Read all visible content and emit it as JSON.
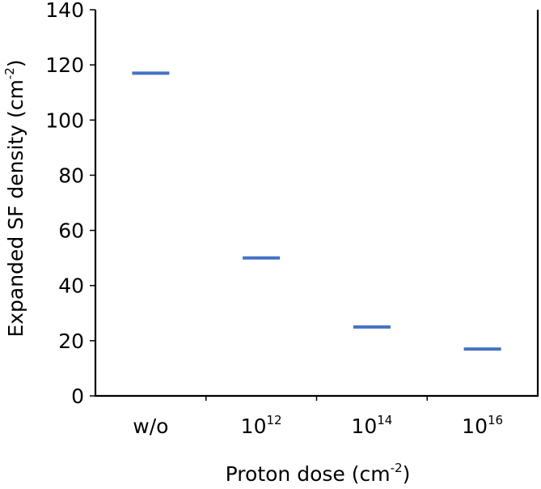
{
  "chart_data": {
    "type": "scatter",
    "marker": "horizontal-dash",
    "categories": [
      {
        "base": "w/o",
        "exp": ""
      },
      {
        "base": "10",
        "exp": "12"
      },
      {
        "base": "10",
        "exp": "14"
      },
      {
        "base": "10",
        "exp": "16"
      }
    ],
    "values": [
      117,
      50,
      25,
      17
    ],
    "xlabel": {
      "text": "Proton dose (cm",
      "exp": "-2",
      "close": ")"
    },
    "ylabel": {
      "text": "Expanded SF density (cm",
      "exp": "-2",
      "close": ")"
    },
    "ylim": [
      0,
      140
    ],
    "yticks": [
      0,
      20,
      40,
      60,
      80,
      100,
      120,
      140
    ],
    "grid": false,
    "legend": "none",
    "series_color": "#4472c4"
  }
}
